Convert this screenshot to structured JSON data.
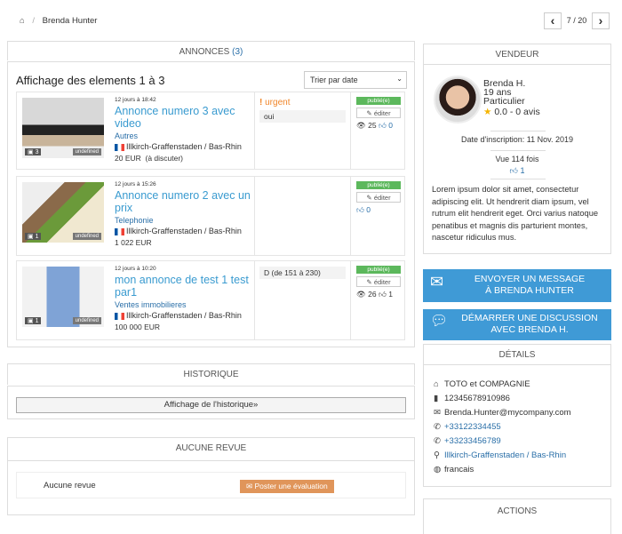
{
  "breadcrumb": {
    "home_icon": "home-icon",
    "current": "Brenda Hunter"
  },
  "pager": {
    "label": "7 / 20",
    "prev": "‹",
    "next": "›"
  },
  "annonces": {
    "header": "ANNONCES",
    "count": "(3)",
    "showing": "Affichage des elements 1 à 3",
    "sort_value": "Trier par date",
    "items": [
      {
        "date": "12 jours à 18:42",
        "title": "Annonce numero 3 avec video",
        "category": "Autres",
        "location": "Illkirch-Graffenstaden / Bas-Rhin",
        "price": "20 EUR",
        "price_note": "(à discuter)",
        "photos": "3",
        "undefined": "undefined",
        "urgent": "urgent",
        "attr": "oui",
        "status": "publié(e)",
        "edit": "éditer",
        "views": "25",
        "likes": "0"
      },
      {
        "date": "12 jours à 15:26",
        "title": "Annonce numero 2 avec un prix",
        "category": "Telephonie",
        "location": "Illkirch-Graffenstaden / Bas-Rhin",
        "price": "1 022 EUR",
        "price_note": "",
        "photos": "1",
        "undefined": "undefined",
        "urgent": "",
        "attr": "",
        "status": "publié(e)",
        "edit": "éditer",
        "views": "",
        "likes": "0"
      },
      {
        "date": "12 jours à 10:20",
        "title": "mon annonce de test 1 test par1",
        "category": "Ventes immobilieres",
        "location": "Illkirch-Graffenstaden / Bas-Rhin",
        "price": "100 000 EUR",
        "price_note": "",
        "photos": "1",
        "undefined": "undefined",
        "urgent": "",
        "attr": "D (de 151 à  230)",
        "status": "publié(e)",
        "edit": "éditer",
        "views": "26",
        "likes": "1"
      }
    ]
  },
  "historique": {
    "header": "HISTORIQUE",
    "button": "Affichage de l'historique»"
  },
  "revues": {
    "header": "AUCUNE REVUE",
    "empty": "Aucune revue",
    "button": "Poster une évaluation"
  },
  "vendeur": {
    "header": "VENDEUR",
    "name": "Brenda H.",
    "age": "19 ans",
    "type": "Particulier",
    "rating": "0.0 - 0 avis",
    "inscription": "Date d'inscription: 11 Nov. 2019",
    "views": "Vue 114 fois",
    "likes": "1",
    "bio": "Lorem ipsum dolor sit amet, consectetur adipiscing elit. Ut hendrerit diam ipsum, vel rutrum elit hendrerit eget. Orci varius natoque penatibus et magnis dis parturient montes, nascetur ridiculus mus."
  },
  "actions_buttons": {
    "message": "ENVOYER UN MESSAGE\nÀ BRENDA HUNTER",
    "discussion": "DÉMARRER UNE DISCUSSION\nAVEC BRENDA H."
  },
  "details": {
    "header": "DÉTAILS",
    "company": "TOTO et COMPAGNIE",
    "siret": "12345678910986",
    "email": "Brenda.Hunter@mycompany.com",
    "phone1": "+33122334455",
    "phone2": "+33233456789",
    "location": "Illkirch-Graffenstaden / Bas-Rhin",
    "language": "francais"
  },
  "actions": {
    "header": "ACTIONS"
  },
  "colors": {
    "accent": "#3f9ad6",
    "link": "#3a9bd0",
    "published": "#5cb85c",
    "urgent": "#f0862a",
    "review_button": "#e0955a"
  }
}
